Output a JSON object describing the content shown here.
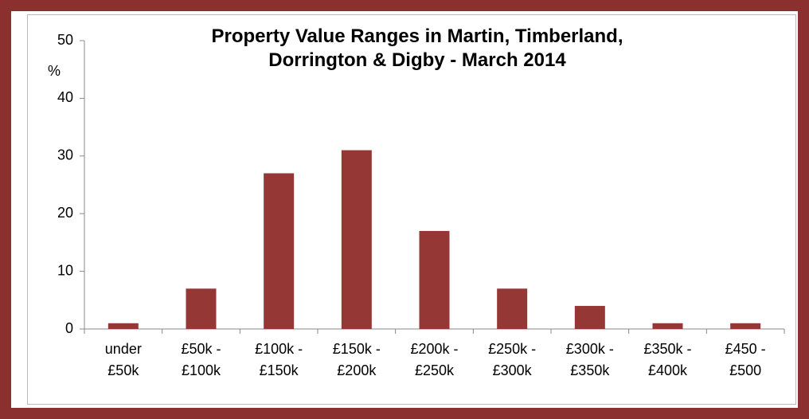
{
  "chart_data": {
    "type": "bar",
    "title": "Property Value Ranges in Martin, Timberland,\nDorrington & Digby - March 2014",
    "y_label": "%",
    "categories": [
      "under\n£50k",
      "£50k -\n£100k",
      "£100k -\n£150k",
      "£150k -\n£200k",
      "£200k -\n£250k",
      "£250k -\n£300k",
      "£300k -\n£350k",
      "£350k -\n£400k",
      "£450 -\n£500"
    ],
    "values": [
      1,
      7,
      27,
      31,
      17,
      7,
      4,
      1,
      1
    ],
    "color": "#953735",
    "ylim": [
      0,
      50
    ],
    "yticks": [
      0,
      10,
      20,
      30,
      40,
      50
    ],
    "grid": false
  }
}
